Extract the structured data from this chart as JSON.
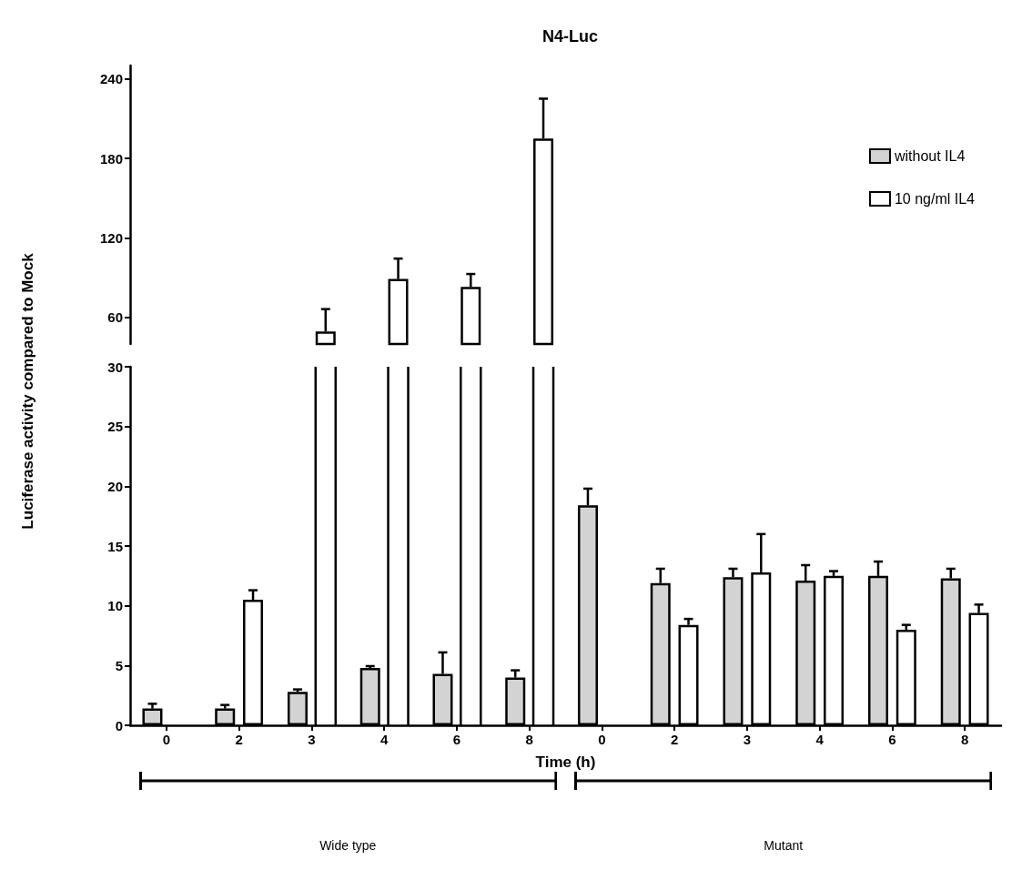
{
  "chart_data": [
    {
      "type": "bar",
      "title": "N4-Luc",
      "ylabel": "Luciferase activity compared to Mock",
      "categories": [
        "0",
        "2",
        "3",
        "4",
        "6",
        "8",
        "0",
        "2",
        "3",
        "4",
        "6",
        "8"
      ],
      "series": [
        {
          "name": "without IL4",
          "color": "#d3d3d3",
          "values": [
            null,
            null,
            null,
            null,
            null,
            null,
            null,
            null,
            null,
            null,
            null,
            null
          ]
        },
        {
          "name": "10 ng/ml IL4",
          "color": "#ffffff",
          "values": [
            null,
            null,
            49.5,
            89,
            83,
            195,
            null,
            null,
            null,
            null,
            null,
            null
          ],
          "errors": [
            null,
            null,
            16.8,
            15.4,
            9.8,
            30,
            null,
            null,
            null,
            null,
            null,
            null
          ]
        }
      ],
      "ylim": [
        40,
        250
      ],
      "yticks": [
        60,
        120,
        180,
        240
      ],
      "legend": "right",
      "tick_labels": "y",
      "grid": false
    },
    {
      "type": "bar",
      "xlabel": "Time (h)",
      "categories": [
        "0",
        "2",
        "3",
        "4",
        "6",
        "8",
        "0",
        "2",
        "3",
        "4",
        "6",
        "8"
      ],
      "series": [
        {
          "color": "#d3d3d3",
          "values": [
            1.4,
            1.4,
            2.8,
            4.8,
            4.3,
            4.0,
            18.4,
            11.9,
            12.4,
            12.1,
            12.5,
            12.3
          ],
          "errors": [
            0.4,
            0.3,
            0.2,
            0.15,
            1.8,
            0.6,
            1.4,
            1.2,
            0.7,
            1.3,
            1.2,
            0.8
          ]
        },
        {
          "color": "#ffffff",
          "values": [
            null,
            10.5,
            null,
            null,
            null,
            null,
            null,
            8.4,
            12.8,
            12.5,
            8.0,
            9.4
          ],
          "errors": [
            null,
            0.8,
            null,
            null,
            null,
            null,
            null,
            0.5,
            3.2,
            0.4,
            0.4,
            0.7
          ]
        }
      ],
      "ylim": [
        0,
        30
      ],
      "yticks": [
        0,
        5,
        10,
        15,
        20,
        25,
        30
      ],
      "annotations": [
        "Wide type",
        "Mutant"
      ],
      "grid": false
    }
  ]
}
